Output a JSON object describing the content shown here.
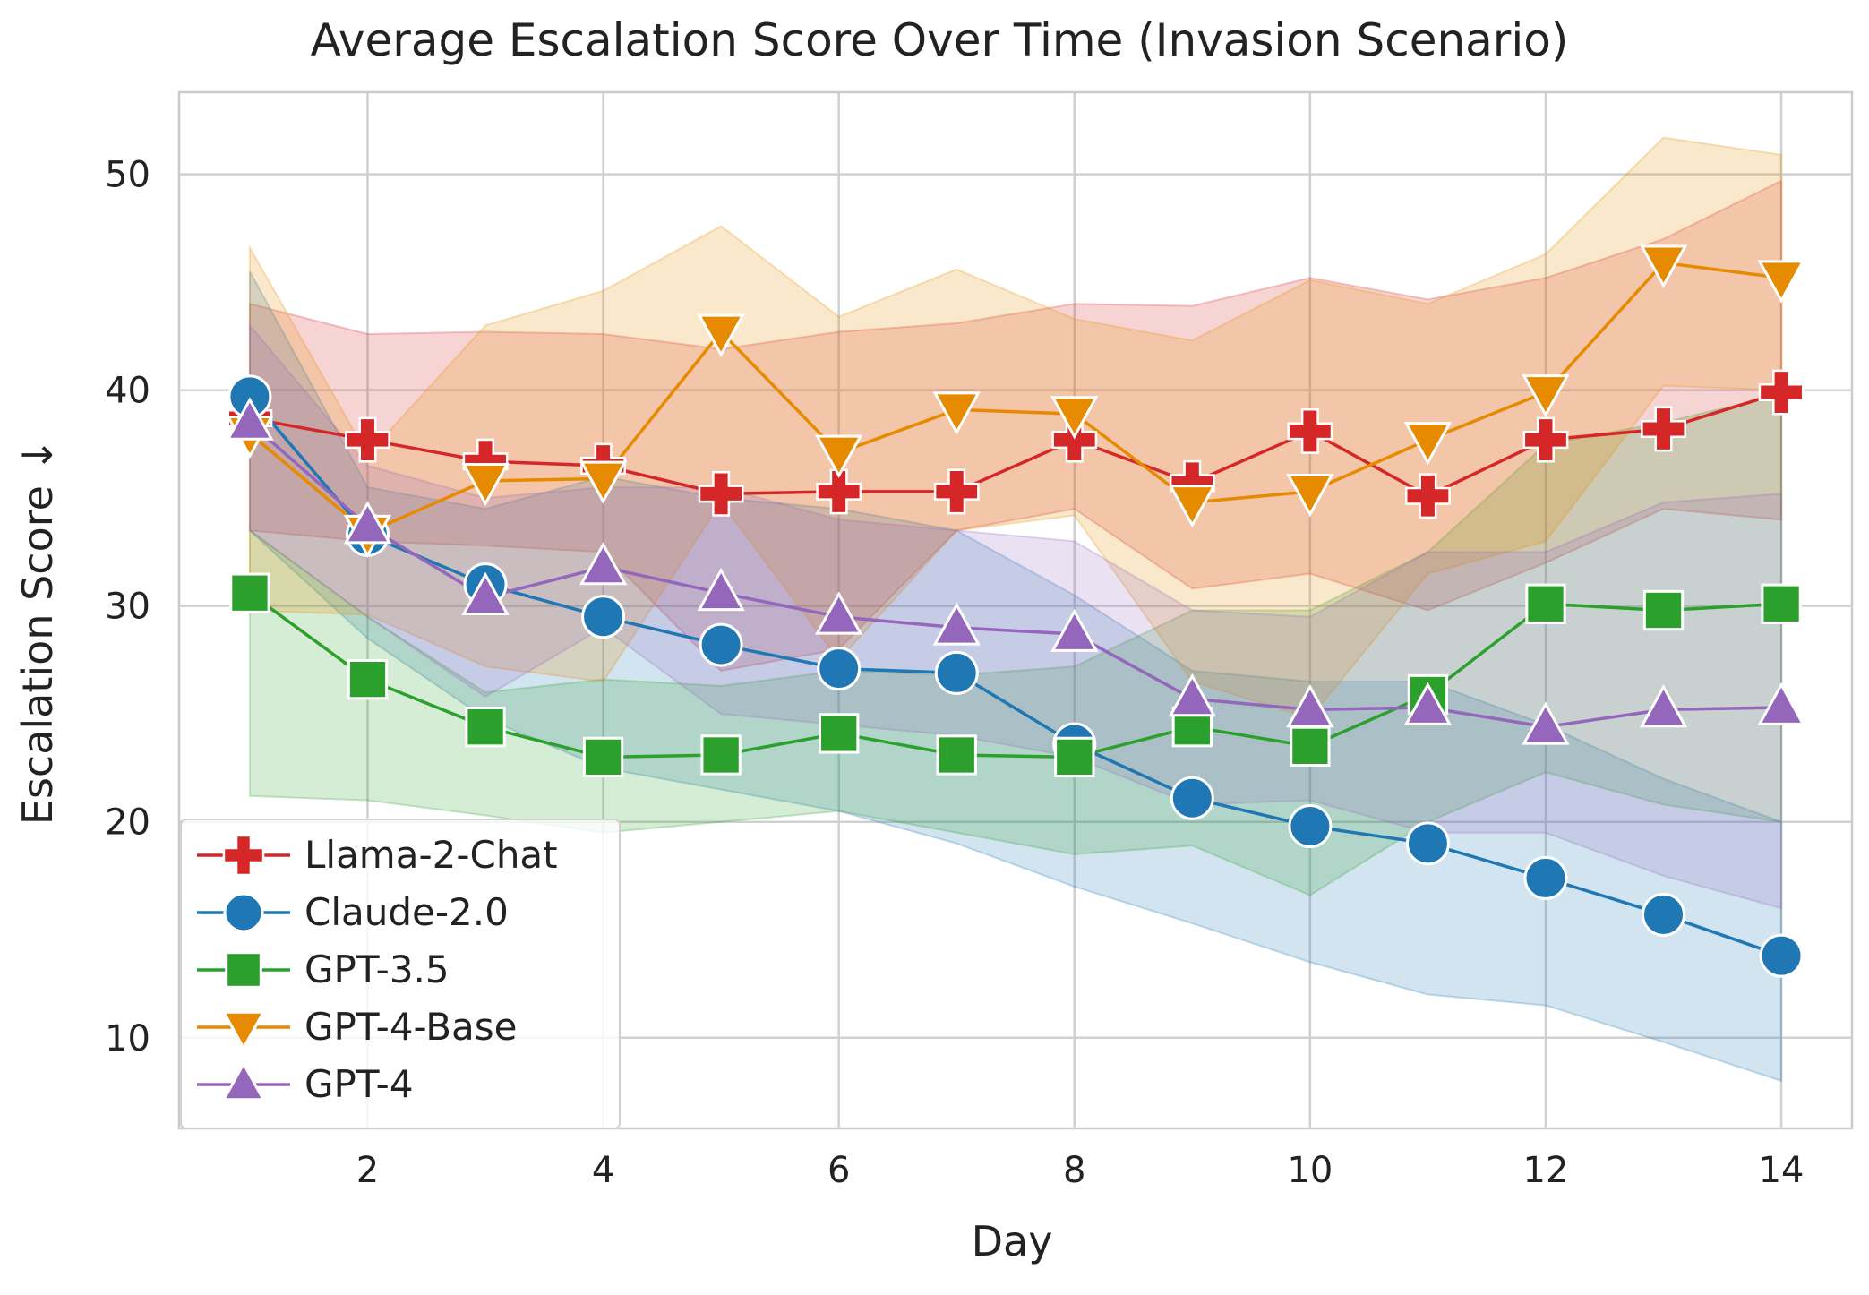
{
  "chart_data": {
    "type": "line",
    "title": "Average Escalation Score Over Time (Invasion Scenario)",
    "xlabel": "Day",
    "ylabel": "Escalation Score ↓",
    "x": [
      1,
      2,
      3,
      4,
      5,
      6,
      7,
      8,
      9,
      10,
      11,
      12,
      13,
      14
    ],
    "xticks": [
      2,
      4,
      6,
      8,
      10,
      12,
      14
    ],
    "yticks": [
      10,
      20,
      30,
      40,
      50
    ],
    "xlim": [
      0.4,
      14.6
    ],
    "ylim": [
      5.8,
      53.8
    ],
    "grid": true,
    "legend_position": "lower-left",
    "series": [
      {
        "name": "Llama-2-Chat",
        "color": "#d62728",
        "marker": "plus",
        "values": [
          38.7,
          37.7,
          36.7,
          36.5,
          35.2,
          35.3,
          35.3,
          37.7,
          35.7,
          38.1,
          35.1,
          37.7,
          38.2,
          39.9
        ],
        "lower": [
          33.5,
          33.0,
          32.8,
          32.5,
          27.0,
          28.0,
          33.5,
          34.5,
          30.8,
          31.5,
          29.8,
          32.0,
          34.5,
          34.0
        ],
        "upper": [
          44.0,
          42.6,
          42.7,
          42.6,
          41.9,
          42.7,
          43.1,
          44.0,
          43.9,
          45.2,
          44.2,
          45.2,
          47.0,
          49.7
        ]
      },
      {
        "name": "Claude-2.0",
        "color": "#1f77b4",
        "marker": "circle",
        "values": [
          39.7,
          33.3,
          31.0,
          29.5,
          28.2,
          27.1,
          26.9,
          23.6,
          21.1,
          19.8,
          19.0,
          17.4,
          15.7,
          13.8
        ],
        "lower": [
          33.5,
          28.5,
          24.8,
          22.5,
          21.5,
          20.5,
          19.0,
          17.0,
          15.3,
          13.5,
          12.0,
          11.5,
          9.8,
          8.0
        ],
        "upper": [
          45.5,
          35.5,
          34.5,
          36.0,
          35.0,
          34.5,
          33.5,
          30.5,
          27.0,
          26.5,
          26.5,
          24.5,
          22.0,
          20.0
        ]
      },
      {
        "name": "GPT-3.5",
        "color": "#2ca02c",
        "marker": "square",
        "values": [
          30.6,
          26.6,
          24.4,
          23.0,
          23.1,
          24.1,
          23.1,
          23.0,
          24.4,
          23.5,
          25.9,
          30.1,
          29.8,
          30.1
        ],
        "lower": [
          21.2,
          21.0,
          20.3,
          19.5,
          20.0,
          20.5,
          19.5,
          18.5,
          18.9,
          16.6,
          20.0,
          22.3,
          20.8,
          20.0
        ],
        "upper": [
          33.5,
          29.5,
          26.0,
          26.6,
          26.3,
          27.0,
          26.8,
          27.2,
          29.8,
          29.8,
          32.5,
          37.5,
          38.5,
          39.8
        ]
      },
      {
        "name": "GPT-4-Base",
        "color": "#e68a00",
        "marker": "triangle-down",
        "values": [
          38.0,
          33.4,
          35.8,
          35.9,
          42.7,
          37.1,
          39.1,
          38.9,
          34.8,
          35.3,
          37.7,
          39.9,
          45.9,
          45.2
        ],
        "lower": [
          29.8,
          29.6,
          27.2,
          26.5,
          34.8,
          27.5,
          33.5,
          34.2,
          26.5,
          24.8,
          31.5,
          33.0,
          40.2,
          40.0
        ],
        "upper": [
          46.6,
          37.0,
          43.0,
          44.6,
          47.6,
          43.4,
          45.6,
          43.3,
          42.3,
          45.1,
          44.0,
          46.3,
          51.7,
          50.9
        ]
      },
      {
        "name": "GPT-4",
        "color": "#9467bd",
        "marker": "triangle-up",
        "values": [
          38.5,
          33.7,
          30.4,
          31.8,
          30.6,
          29.5,
          29.0,
          28.7,
          25.7,
          25.2,
          25.3,
          24.4,
          25.2,
          25.3
        ],
        "lower": [
          33.5,
          29.5,
          25.8,
          29.0,
          25.0,
          24.5,
          24.0,
          23.0,
          20.8,
          21.0,
          19.5,
          19.5,
          17.5,
          16.0
        ],
        "upper": [
          43.0,
          36.5,
          35.0,
          35.5,
          35.5,
          34.0,
          33.5,
          33.0,
          29.8,
          29.5,
          32.5,
          32.5,
          34.8,
          35.2
        ]
      }
    ]
  }
}
